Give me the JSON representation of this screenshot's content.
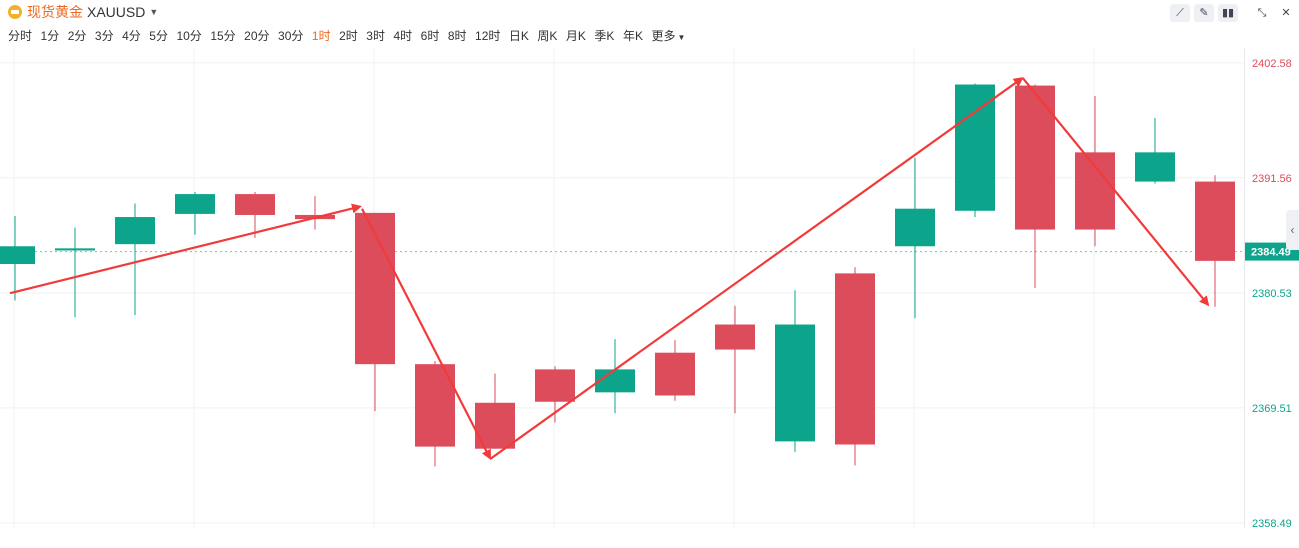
{
  "header": {
    "instrument_cn": "现货黄金",
    "symbol": "XAUUSD",
    "logo_icon": "gold-coin-icon",
    "dropdown_icon": "caret-down-icon"
  },
  "periods": [
    "分时",
    "1分",
    "2分",
    "3分",
    "4分",
    "5分",
    "10分",
    "15分",
    "20分",
    "30分",
    "1时",
    "2时",
    "3时",
    "4时",
    "6时",
    "8时",
    "12时",
    "日K",
    "周K",
    "月K",
    "季K",
    "年K",
    "更多"
  ],
  "active_period": "1时",
  "toolbar_icons": [
    "line-draw-icon",
    "pen-icon",
    "candle-style-icon",
    "collapse-icon",
    "close-icon"
  ],
  "chart_data": {
    "type": "candlestick",
    "ylim": [
      2358.0,
      2404.0
    ],
    "y_ticks": [
      2402.58,
      2391.56,
      2380.53,
      2369.51,
      2358.49
    ],
    "current_price": 2384.49,
    "up_color": "#0ca58b",
    "down_color": "#dc4c5b",
    "arrow_color": "#f23a3a",
    "candles": [
      {
        "open": 2383.3,
        "high": 2387.9,
        "low": 2379.8,
        "close": 2385.0
      },
      {
        "open": 2384.6,
        "high": 2386.8,
        "low": 2378.2,
        "close": 2384.8
      },
      {
        "open": 2385.2,
        "high": 2389.1,
        "low": 2378.4,
        "close": 2387.8
      },
      {
        "open": 2388.1,
        "high": 2390.2,
        "low": 2386.1,
        "close": 2390.0
      },
      {
        "open": 2390.0,
        "high": 2390.2,
        "low": 2385.8,
        "close": 2388.0
      },
      {
        "open": 2388.0,
        "high": 2389.8,
        "low": 2386.6,
        "close": 2387.6
      },
      {
        "open": 2388.2,
        "high": 2388.2,
        "low": 2369.2,
        "close": 2373.7
      },
      {
        "open": 2373.7,
        "high": 2374.0,
        "low": 2363.9,
        "close": 2365.8
      },
      {
        "open": 2370.0,
        "high": 2372.8,
        "low": 2365.6,
        "close": 2365.6
      },
      {
        "open": 2373.2,
        "high": 2373.5,
        "low": 2368.1,
        "close": 2370.1
      },
      {
        "open": 2371.0,
        "high": 2376.1,
        "low": 2369.0,
        "close": 2373.2
      },
      {
        "open": 2374.8,
        "high": 2376.0,
        "low": 2370.2,
        "close": 2370.7
      },
      {
        "open": 2377.5,
        "high": 2379.3,
        "low": 2369.0,
        "close": 2375.1
      },
      {
        "open": 2366.3,
        "high": 2380.8,
        "low": 2365.3,
        "close": 2377.5
      },
      {
        "open": 2382.4,
        "high": 2383.0,
        "low": 2364.0,
        "close": 2366.0
      },
      {
        "open": 2385.0,
        "high": 2393.5,
        "low": 2378.1,
        "close": 2388.6
      },
      {
        "open": 2388.4,
        "high": 2400.6,
        "low": 2387.8,
        "close": 2400.5
      },
      {
        "open": 2400.4,
        "high": 2400.5,
        "low": 2381.0,
        "close": 2386.6
      },
      {
        "open": 2394.0,
        "high": 2399.4,
        "low": 2385.0,
        "close": 2386.6
      },
      {
        "open": 2391.2,
        "high": 2397.3,
        "low": 2391.0,
        "close": 2394.0
      },
      {
        "open": 2391.2,
        "high": 2391.8,
        "low": 2379.2,
        "close": 2383.6
      }
    ]
  }
}
